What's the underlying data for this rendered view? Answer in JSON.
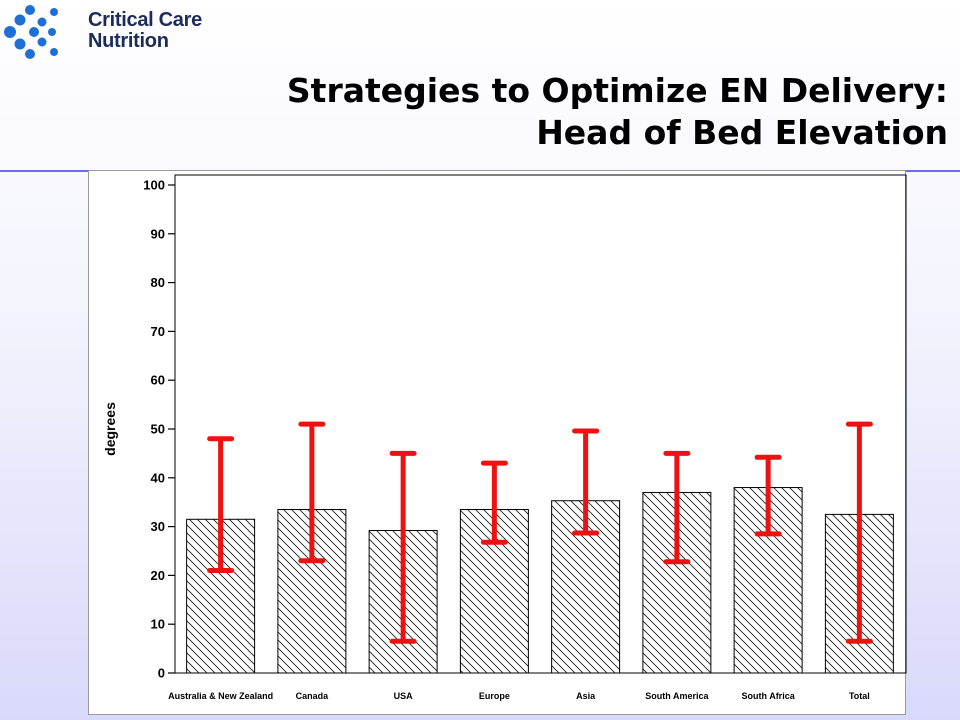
{
  "logo": {
    "line1": "Critical Care",
    "line2": "Nutrition",
    "mark_color": "#1f6fd6"
  },
  "title": {
    "line1": "Strategies to Optimize EN Delivery:",
    "line2": "Head of Bed Elevation"
  },
  "chart_data": {
    "type": "bar",
    "ylabel": "degrees",
    "xlabel": "",
    "ylim": [
      0,
      100
    ],
    "yticks": [
      0,
      10,
      20,
      30,
      40,
      50,
      60,
      70,
      80,
      90,
      100
    ],
    "categories": [
      "Australia & New Zealand",
      "Canada",
      "USA",
      "Europe",
      "Asia",
      "South America",
      "South Africa",
      "Total"
    ],
    "values": [
      31.5,
      33.5,
      29.2,
      33.5,
      35.3,
      37,
      38,
      32.5
    ],
    "error_low": [
      21,
      23,
      6.5,
      26.8,
      28.7,
      22.8,
      28.5,
      6.5
    ],
    "error_high": [
      48,
      51,
      45,
      43,
      49.6,
      45,
      44.2,
      51
    ],
    "bar_fill": "diagonal-hatch",
    "error_bar_color": "#ee1111",
    "grid": false
  }
}
